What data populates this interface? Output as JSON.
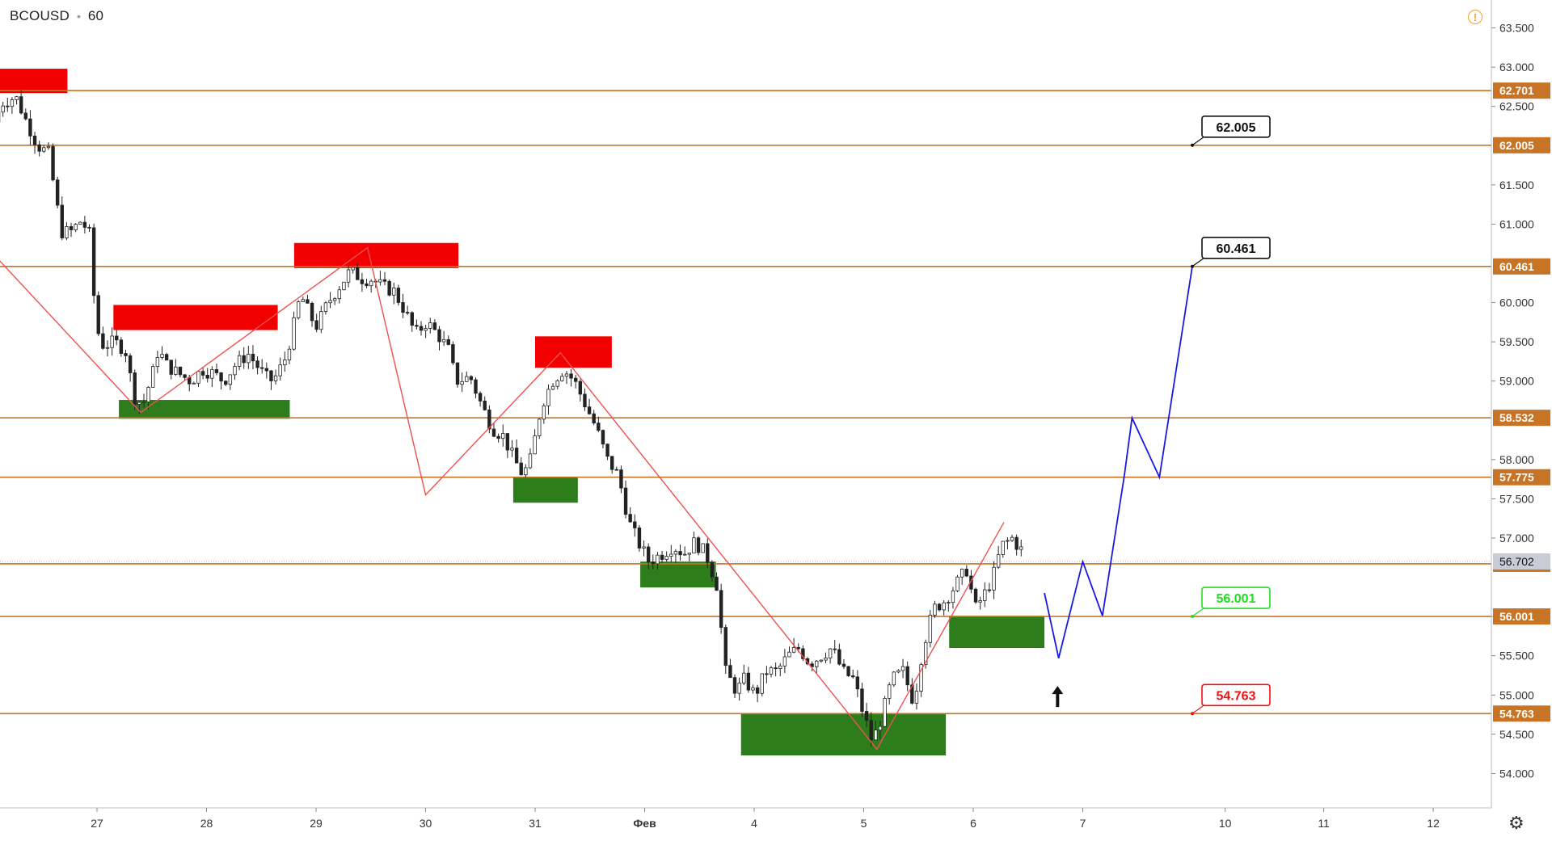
{
  "header": {
    "symbol": "BCOUSD",
    "interval": "60"
  },
  "icons": {
    "alert": "warning-icon",
    "settings": "gear-icon"
  },
  "colors": {
    "level_line": "#c87426",
    "resistance_zone": "#f20000",
    "support_zone": "#2e7d1c",
    "zigzag": "#f05050",
    "forecast": "#1a1adf",
    "up_label": "#22dd22",
    "down_label": "#ee1111"
  },
  "chart_data": {
    "type": "candlestick",
    "ylim": [
      53.85,
      63.65
    ],
    "y_ticks": [
      {
        "value": 54.0,
        "label": "54.000"
      },
      {
        "value": 54.5,
        "label": "54.500"
      },
      {
        "value": 55.0,
        "label": "55.000"
      },
      {
        "value": 55.5,
        "label": "55.500"
      },
      {
        "value": 56.0,
        "label": "56.000"
      },
      {
        "value": 57.0,
        "label": "57.000"
      },
      {
        "value": 57.5,
        "label": "57.500"
      },
      {
        "value": 58.0,
        "label": "58.000"
      },
      {
        "value": 59.0,
        "label": "59.000"
      },
      {
        "value": 59.5,
        "label": "59.500"
      },
      {
        "value": 60.0,
        "label": "60.000"
      },
      {
        "value": 61.0,
        "label": "61.000"
      },
      {
        "value": 61.5,
        "label": "61.500"
      },
      {
        "value": 62.5,
        "label": "62.500"
      },
      {
        "value": 63.0,
        "label": "63.000"
      },
      {
        "value": 63.5,
        "label": "63.500"
      }
    ],
    "x_labels": [
      "27",
      "28",
      "29",
      "30",
      "31",
      "Фев",
      "4",
      "5",
      "6",
      "7",
      "10",
      "11",
      "12"
    ],
    "x_label_pos": [
      0.0,
      1.0,
      2.0,
      3.0,
      4.0,
      5.0,
      6.0,
      7.0,
      8.0,
      9.0,
      10.3,
      11.2,
      12.2
    ],
    "last_price": {
      "value": 56.702,
      "label": "56.702"
    },
    "levels": [
      {
        "value": 62.701,
        "label": "62.701"
      },
      {
        "value": 62.005,
        "label": "62.005"
      },
      {
        "value": 60.461,
        "label": "60.461"
      },
      {
        "value": 58.532,
        "label": "58.532"
      },
      {
        "value": 57.775,
        "label": "57.775"
      },
      {
        "value": 56.671,
        "label": "56.671"
      },
      {
        "value": 56.001,
        "label": "56.001"
      },
      {
        "value": 54.763,
        "label": "54.763"
      }
    ],
    "resistance_zones": [
      {
        "x0": -0.9,
        "x1": -0.27,
        "y0": 62.67,
        "y1": 62.98
      },
      {
        "x0": 0.15,
        "x1": 1.65,
        "y0": 59.65,
        "y1": 59.97
      },
      {
        "x0": 1.8,
        "x1": 3.3,
        "y0": 60.44,
        "y1": 60.76
      },
      {
        "x0": 4.0,
        "x1": 4.7,
        "y0": 59.17,
        "y1": 59.57
      }
    ],
    "support_zones": [
      {
        "x0": 0.2,
        "x1": 1.76,
        "y0": 58.52,
        "y1": 58.76
      },
      {
        "x0": 3.8,
        "x1": 4.39,
        "y0": 57.45,
        "y1": 57.78
      },
      {
        "x0": 4.96,
        "x1": 5.65,
        "y0": 56.37,
        "y1": 56.7
      },
      {
        "x0": 5.88,
        "x1": 7.75,
        "y0": 54.23,
        "y1": 54.77
      },
      {
        "x0": 7.78,
        "x1": 8.65,
        "y0": 55.6,
        "y1": 56.01
      }
    ],
    "zigzag": [
      [
        -0.9,
        60.55
      ],
      [
        0.4,
        58.6
      ],
      [
        2.47,
        60.7
      ],
      [
        3.0,
        57.55
      ],
      [
        4.23,
        59.36
      ],
      [
        7.12,
        54.31
      ],
      [
        8.28,
        57.2
      ]
    ],
    "forecast": [
      [
        8.65,
        56.3
      ],
      [
        8.78,
        55.47
      ],
      [
        9.0,
        56.7
      ],
      [
        9.18,
        56.01
      ],
      [
        9.38,
        57.8
      ],
      [
        9.45,
        58.53
      ],
      [
        9.7,
        57.775
      ],
      [
        10.0,
        60.461
      ]
    ],
    "forecast_arrow": {
      "x": 8.77,
      "y": 54.95
    },
    "target_labels": [
      {
        "value": 62.005,
        "label": "62.005",
        "kind": "neutral"
      },
      {
        "value": 60.461,
        "label": "60.461",
        "kind": "neutral"
      },
      {
        "value": 56.001,
        "label": "56.001",
        "kind": "up"
      },
      {
        "value": 54.763,
        "label": "54.763",
        "kind": "down"
      }
    ],
    "target_x": 10.0,
    "price_path": [
      [
        -0.9,
        62.3
      ],
      [
        -0.82,
        62.55
      ],
      [
        -0.7,
        62.62
      ],
      [
        -0.6,
        62.3
      ],
      [
        -0.5,
        62.0
      ],
      [
        -0.4,
        61.9
      ],
      [
        -0.32,
        61.2
      ],
      [
        -0.28,
        60.9
      ],
      [
        -0.2,
        60.9
      ],
      [
        -0.1,
        61.05
      ],
      [
        -0.02,
        60.85
      ],
      [
        0.03,
        59.7
      ],
      [
        0.1,
        59.45
      ],
      [
        0.2,
        59.5
      ],
      [
        0.3,
        59.4
      ],
      [
        0.38,
        58.8
      ],
      [
        0.46,
        58.7
      ],
      [
        0.55,
        59.1
      ],
      [
        0.6,
        59.4
      ],
      [
        0.68,
        59.2
      ],
      [
        0.78,
        59.1
      ],
      [
        0.9,
        59.0
      ],
      [
        1.0,
        59.15
      ],
      [
        1.1,
        59.1
      ],
      [
        1.2,
        59.0
      ],
      [
        1.3,
        59.2
      ],
      [
        1.42,
        59.35
      ],
      [
        1.5,
        59.2
      ],
      [
        1.58,
        59.05
      ],
      [
        1.65,
        59.0
      ],
      [
        1.75,
        59.25
      ],
      [
        1.82,
        59.6
      ],
      [
        1.9,
        60.1
      ],
      [
        2.0,
        59.8
      ],
      [
        2.05,
        59.7
      ],
      [
        2.15,
        60.0
      ],
      [
        2.25,
        60.2
      ],
      [
        2.35,
        60.4
      ],
      [
        2.47,
        60.3
      ],
      [
        2.55,
        60.3
      ],
      [
        2.65,
        60.2
      ],
      [
        2.75,
        60.15
      ],
      [
        2.85,
        59.9
      ],
      [
        2.95,
        59.6
      ],
      [
        3.05,
        59.75
      ],
      [
        3.15,
        59.6
      ],
      [
        3.25,
        59.4
      ],
      [
        3.32,
        59.0
      ],
      [
        3.45,
        59.05
      ],
      [
        3.55,
        58.7
      ],
      [
        3.65,
        58.4
      ],
      [
        3.75,
        58.3
      ],
      [
        3.85,
        58.0
      ],
      [
        3.93,
        57.8
      ],
      [
        4.0,
        58.0
      ],
      [
        4.1,
        58.7
      ],
      [
        4.2,
        59.0
      ],
      [
        4.3,
        59.15
      ],
      [
        4.4,
        59.0
      ],
      [
        4.5,
        58.7
      ],
      [
        4.6,
        58.4
      ],
      [
        4.7,
        58.0
      ],
      [
        4.8,
        57.8
      ],
      [
        4.9,
        57.2
      ],
      [
        5.0,
        56.9
      ],
      [
        5.08,
        56.7
      ],
      [
        5.2,
        56.8
      ],
      [
        5.3,
        56.9
      ],
      [
        5.4,
        56.8
      ],
      [
        5.5,
        56.95
      ],
      [
        5.6,
        56.8
      ],
      [
        5.7,
        56.4
      ],
      [
        5.78,
        55.3
      ],
      [
        5.88,
        55.05
      ],
      [
        5.95,
        55.2
      ],
      [
        6.05,
        55.0
      ],
      [
        6.15,
        55.3
      ],
      [
        6.25,
        55.3
      ],
      [
        6.35,
        55.5
      ],
      [
        6.45,
        55.6
      ],
      [
        6.55,
        55.4
      ],
      [
        6.65,
        55.5
      ],
      [
        6.75,
        55.6
      ],
      [
        6.85,
        55.3
      ],
      [
        6.95,
        55.2
      ],
      [
        7.03,
        54.8
      ],
      [
        7.12,
        54.4
      ],
      [
        7.2,
        54.7
      ],
      [
        7.3,
        55.2
      ],
      [
        7.4,
        55.3
      ],
      [
        7.5,
        54.9
      ],
      [
        7.58,
        55.6
      ],
      [
        7.68,
        56.1
      ],
      [
        7.78,
        56.2
      ],
      [
        7.88,
        56.4
      ],
      [
        7.98,
        56.6
      ],
      [
        8.06,
        56.1
      ],
      [
        8.15,
        56.3
      ],
      [
        8.22,
        56.5
      ],
      [
        8.3,
        56.9
      ],
      [
        8.4,
        57.0
      ],
      [
        8.47,
        56.85
      ]
    ]
  }
}
